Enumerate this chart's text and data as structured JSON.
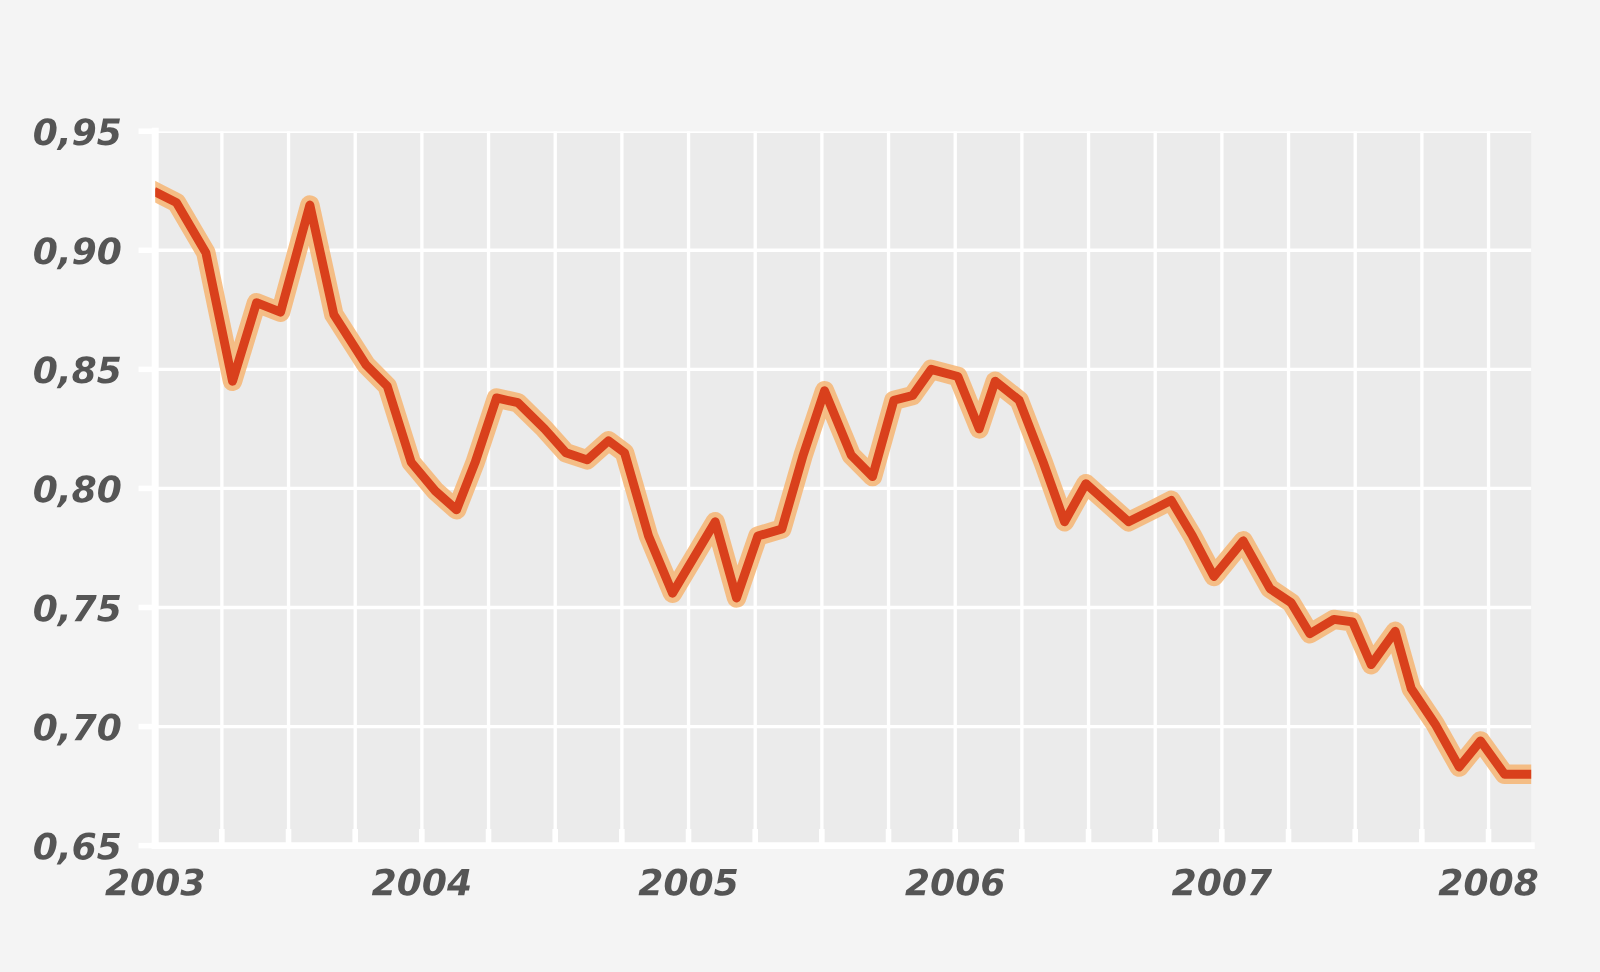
{
  "chart_data": {
    "type": "line",
    "x": [
      2003.01,
      2003.08,
      2003.19,
      2003.29,
      2003.38,
      2003.47,
      2003.58,
      2003.67,
      2003.79,
      2003.87,
      2003.96,
      2004.05,
      2004.13,
      2004.2,
      2004.28,
      2004.36,
      2004.46,
      2004.54,
      2004.62,
      2004.7,
      2004.76,
      2004.85,
      2004.94,
      2005.02,
      2005.1,
      2005.18,
      2005.26,
      2005.35,
      2005.43,
      2005.51,
      2005.61,
      2005.69,
      2005.77,
      2005.84,
      2005.91,
      2006.01,
      2006.09,
      2006.15,
      2006.24,
      2006.33,
      2006.41,
      2006.49,
      2006.57,
      2006.65,
      2006.74,
      2006.81,
      2006.89,
      2006.97,
      2007.08,
      2007.18,
      2007.26,
      2007.33,
      2007.42,
      2007.49,
      2007.56,
      2007.65,
      2007.71,
      2007.8,
      2007.89,
      2007.97,
      2008.06,
      2008.15
    ],
    "series": [
      {
        "color": "#d9401c",
        "values": [
          0.924,
          0.92,
          0.899,
          0.845,
          0.878,
          0.874,
          0.919,
          0.873,
          0.852,
          0.843,
          0.811,
          0.799,
          0.791,
          0.811,
          0.838,
          0.836,
          0.825,
          0.815,
          0.812,
          0.82,
          0.815,
          0.78,
          0.756,
          0.771,
          0.786,
          0.754,
          0.78,
          0.783,
          0.814,
          0.841,
          0.814,
          0.805,
          0.837,
          0.839,
          0.85,
          0.847,
          0.825,
          0.845,
          0.837,
          0.811,
          0.786,
          0.802,
          0.794,
          0.786,
          0.791,
          0.795,
          0.78,
          0.763,
          0.778,
          0.758,
          0.752,
          0.739,
          0.745,
          0.744,
          0.726,
          0.74,
          0.716,
          0.701,
          0.683,
          0.694,
          0.68,
          0.68
        ]
      }
    ],
    "xlim": [
      2003,
      2008.16
    ],
    "xticks": [
      2003,
      {
        "value": 2003.25,
        "label": null
      },
      {
        "value": 2003.5,
        "label": null
      },
      {
        "value": 2003.75,
        "label": null
      },
      2004,
      {
        "value": 2004.25,
        "label": null
      },
      {
        "value": 2004.5,
        "label": null
      },
      {
        "value": 2004.75,
        "label": null
      },
      2005,
      {
        "value": 2005.25,
        "label": null
      },
      {
        "value": 2005.5,
        "label": null
      },
      {
        "value": 2005.75,
        "label": null
      },
      2006,
      {
        "value": 2006.25,
        "label": null
      },
      {
        "value": 2006.5,
        "label": null
      },
      {
        "value": 2006.75,
        "label": null
      },
      2007,
      {
        "value": 2007.25,
        "label": null
      },
      {
        "value": 2007.5,
        "label": null
      },
      {
        "value": 2007.75,
        "label": null
      },
      2008
    ],
    "ylim": [
      0.65,
      0.95
    ],
    "yticks": [
      {
        "value": 0.65,
        "label": "0,65"
      },
      {
        "value": 0.7,
        "label": "0,70"
      },
      {
        "value": 0.75,
        "label": "0,75"
      },
      {
        "value": 0.8,
        "label": "0,80"
      },
      {
        "value": 0.85,
        "label": "0,85"
      },
      {
        "value": 0.9,
        "label": "0,90"
      },
      {
        "value": 0.95,
        "label": "0,95"
      }
    ],
    "grid": true,
    "marker": "none",
    "line_style": "solid"
  }
}
